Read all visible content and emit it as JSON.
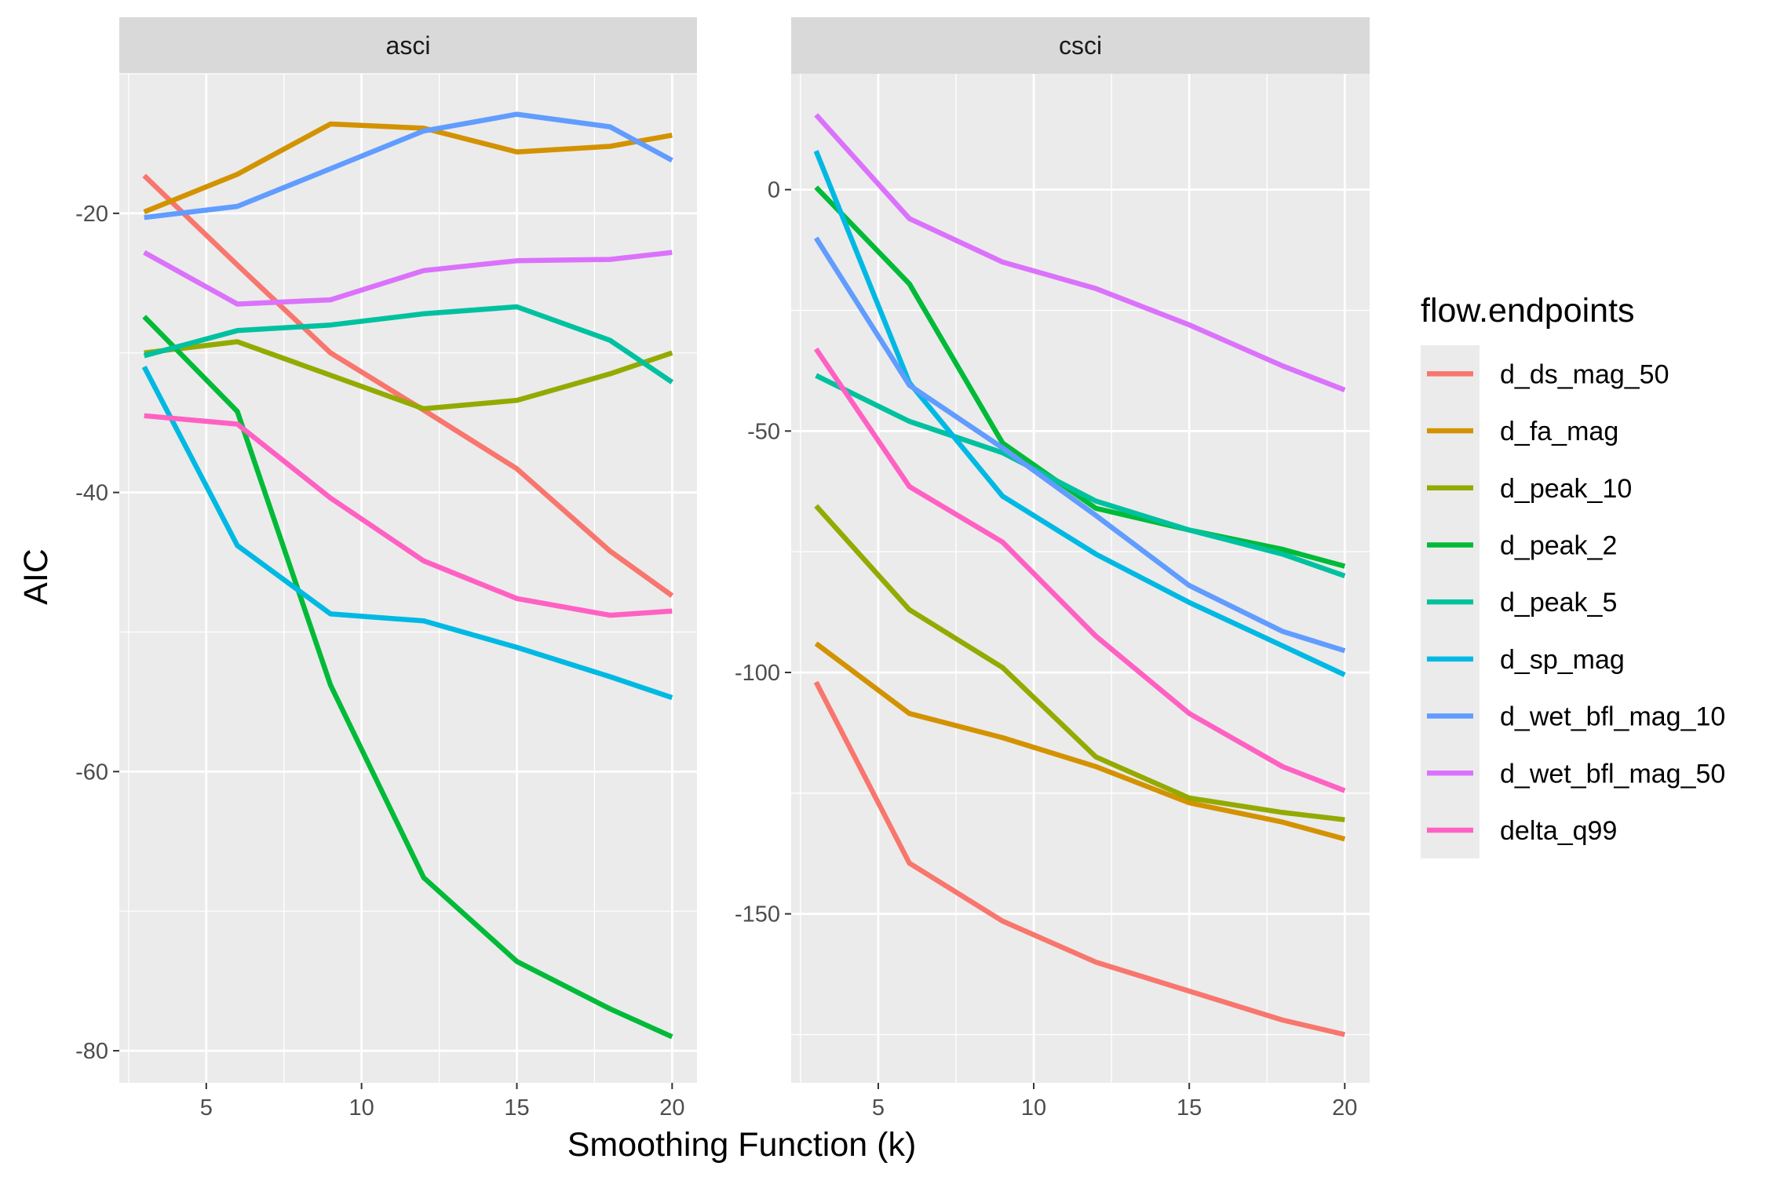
{
  "chart_data": {
    "type": "line",
    "xlabel": "Smoothing Function (k)",
    "ylabel": "AIC",
    "legend_title": "flow.endpoints",
    "legend_position": "right",
    "grid": true,
    "x": [
      3,
      6,
      9,
      12,
      15,
      18,
      20
    ],
    "xticks": [
      5,
      10,
      15,
      20
    ],
    "xlim": [
      2.2,
      20.8
    ],
    "series_colors": {
      "d_ds_mag_50": "#F8766D",
      "d_fa_mag": "#D39200",
      "d_peak_10": "#93AA00",
      "d_peak_2": "#00BA38",
      "d_peak_5": "#00C19F",
      "d_sp_mag": "#00B9E3",
      "d_wet_bfl_mag_10": "#619CFF",
      "d_wet_bfl_mag_50": "#DB72FB",
      "delta_q99": "#FF61C3"
    },
    "panels": [
      {
        "strip": "asci",
        "ylim": [
          -82.3,
          -10.0
        ],
        "yticks": [
          -20,
          -40,
          -60,
          -80
        ],
        "series": [
          {
            "name": "d_ds_mag_50",
            "values": [
              -17.3,
              -23.7,
              -30.0,
              -34.1,
              -38.3,
              -44.2,
              -47.4
            ]
          },
          {
            "name": "d_fa_mag",
            "values": [
              -19.9,
              -17.2,
              -13.6,
              -13.9,
              -15.6,
              -15.2,
              -14.4
            ]
          },
          {
            "name": "d_peak_10",
            "values": [
              -30.0,
              -29.2,
              -31.6,
              -34.0,
              -33.4,
              -31.5,
              -30.0
            ]
          },
          {
            "name": "d_peak_2",
            "values": [
              -27.4,
              -34.2,
              -53.8,
              -67.6,
              -73.6,
              -77.0,
              -79.0
            ]
          },
          {
            "name": "d_peak_5",
            "values": [
              -30.2,
              -28.4,
              -28.0,
              -27.2,
              -26.7,
              -29.1,
              -32.1
            ]
          },
          {
            "name": "d_sp_mag",
            "values": [
              -31.0,
              -43.8,
              -48.7,
              -49.2,
              -51.1,
              -53.2,
              -54.7
            ]
          },
          {
            "name": "d_wet_bfl_mag_10",
            "values": [
              -20.3,
              -19.5,
              -16.8,
              -14.1,
              -12.9,
              -13.8,
              -16.2
            ]
          },
          {
            "name": "d_wet_bfl_mag_50",
            "values": [
              -22.8,
              -26.5,
              -26.2,
              -24.1,
              -23.4,
              -23.3,
              -22.8
            ]
          },
          {
            "name": "delta_q99",
            "values": [
              -34.5,
              -35.1,
              -40.4,
              -44.9,
              -47.6,
              -48.8,
              -48.5
            ]
          }
        ]
      },
      {
        "strip": "csci",
        "ylim": [
          -185.0,
          24.0
        ],
        "yticks": [
          0,
          -50,
          -100,
          -150
        ],
        "series": [
          {
            "name": "d_ds_mag_50",
            "values": [
              -102.0,
              -139.5,
              -151.5,
              -160.0,
              -166.0,
              -172.0,
              -175.0
            ]
          },
          {
            "name": "d_fa_mag",
            "values": [
              -94.0,
              -108.5,
              -113.5,
              -119.5,
              -127.0,
              -131.0,
              -134.5
            ]
          },
          {
            "name": "d_peak_10",
            "values": [
              -65.5,
              -87.0,
              -99.0,
              -117.5,
              -126.0,
              -129.0,
              -130.5
            ]
          },
          {
            "name": "d_peak_2",
            "values": [
              0.5,
              -19.5,
              -52.5,
              -66.0,
              -70.5,
              -74.5,
              -78.0
            ]
          },
          {
            "name": "d_peak_5",
            "values": [
              -38.5,
              -48.0,
              -54.5,
              -64.5,
              -70.5,
              -75.5,
              -80.0
            ]
          },
          {
            "name": "d_sp_mag",
            "values": [
              8.0,
              -40.0,
              -63.5,
              -75.5,
              -85.5,
              -94.5,
              -100.5
            ]
          },
          {
            "name": "d_wet_bfl_mag_10",
            "values": [
              -10.0,
              -40.5,
              -53.5,
              -67.5,
              -82.0,
              -91.5,
              -95.5
            ]
          },
          {
            "name": "d_wet_bfl_mag_50",
            "values": [
              15.5,
              -6.0,
              -15.0,
              -20.5,
              -28.0,
              -36.5,
              -41.5
            ]
          },
          {
            "name": "delta_q99",
            "values": [
              -33.0,
              -61.5,
              -73.0,
              -92.5,
              -108.5,
              -119.5,
              -124.5
            ]
          }
        ]
      }
    ]
  }
}
